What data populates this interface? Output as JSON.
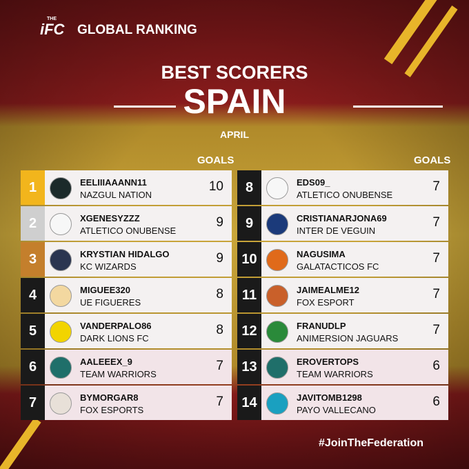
{
  "header": {
    "logo_small": "THE",
    "logo": "iFC",
    "brand": "GLOBAL RANKING",
    "title": "BEST SCORERS",
    "country": "SPAIN",
    "period": "APRIL"
  },
  "table": {
    "goals_headers": [
      "GOALS",
      "GOALS"
    ],
    "rows": [
      {
        "rank": 1,
        "player": "EELIIIAAANN11",
        "team": "NAZGUL NATION",
        "goals": 10
      },
      {
        "rank": 2,
        "player": "XGENESYZZZ",
        "team": "ATLETICO ONUBENSE",
        "goals": 9
      },
      {
        "rank": 3,
        "player": "KRYSTIAN HIDALGO",
        "team": "KC WIZARDS",
        "goals": 9
      },
      {
        "rank": 4,
        "player": "MIGUEE320",
        "team": "UE FIGUERES",
        "goals": 8
      },
      {
        "rank": 5,
        "player": "VANDERPALO86",
        "team": "DARK LIONS FC",
        "goals": 8
      },
      {
        "rank": 6,
        "player": "AALEEEX_9",
        "team": "TEAM WARRIORS",
        "goals": 7
      },
      {
        "rank": 7,
        "player": "BYMORGAR8",
        "team": "FOX ESPORTS",
        "goals": 7
      },
      {
        "rank": 8,
        "player": "EDS09_",
        "team": "ATLETICO ONUBENSE",
        "goals": 7
      },
      {
        "rank": 9,
        "player": "CRISTIANARJONA69",
        "team": "INTER DE VEGUIN",
        "goals": 7
      },
      {
        "rank": 10,
        "player": "NAGUSIMA",
        "team": "GALATACTICOS FC",
        "goals": 7
      },
      {
        "rank": 11,
        "player": "JAIMEALME12",
        "team": "FOX ESPORT",
        "goals": 7
      },
      {
        "rank": 12,
        "player": "FRANUDLP",
        "team": "ANIMERSION JAGUARS",
        "goals": 7
      },
      {
        "rank": 13,
        "player": "EROVERTOPS",
        "team": "TEAM WARRIORS",
        "goals": 6
      },
      {
        "rank": 14,
        "player": "JAVITOMB1298",
        "team": "PAYO VALLECANO",
        "goals": 6
      }
    ]
  },
  "footer": {
    "hashtag": "#JoinTheFederation"
  }
}
